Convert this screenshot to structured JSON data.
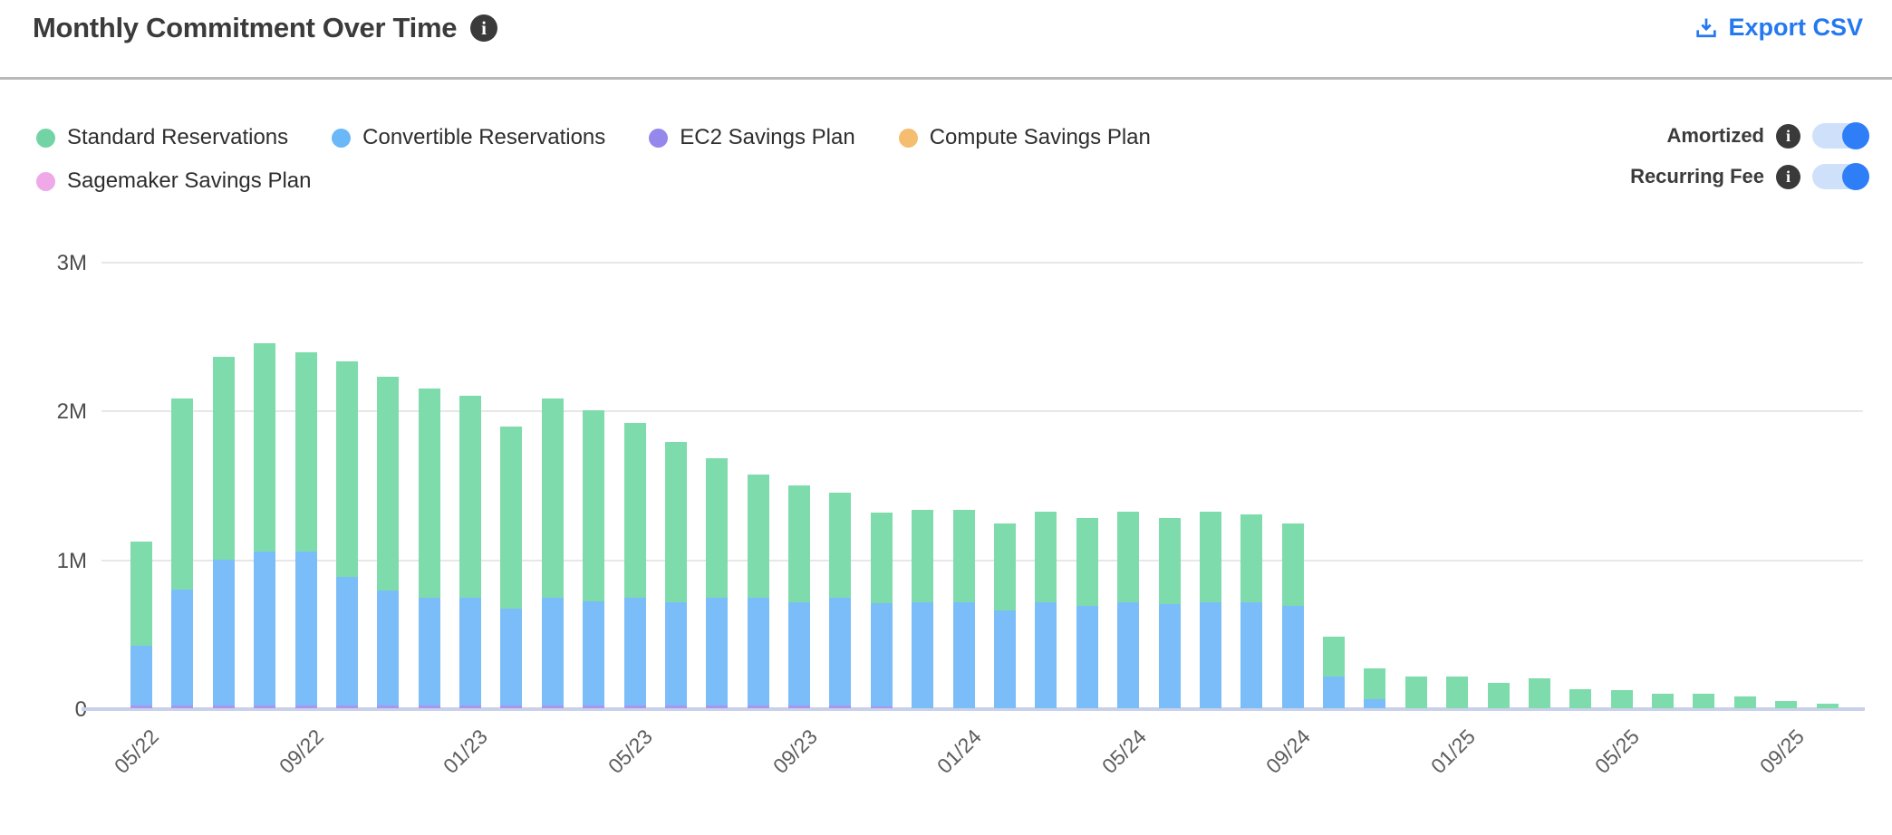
{
  "header": {
    "title": "Monthly Commitment Over Time",
    "title_info": "i",
    "export_label": "Export CSV"
  },
  "controls": {
    "toggles": [
      {
        "label": "Amortized",
        "info": "i",
        "state": "on"
      },
      {
        "label": "Recurring Fee",
        "info": "i",
        "state": "on"
      }
    ]
  },
  "legend": {
    "items": [
      {
        "label": "Standard Reservations",
        "color": "#72d4a4"
      },
      {
        "label": "Convertible Reservations",
        "color": "#6ab8f7"
      },
      {
        "label": "EC2 Savings Plan",
        "color": "#9488ec"
      },
      {
        "label": "Compute Savings Plan",
        "color": "#f4bd70"
      },
      {
        "label": "Sagemaker Savings Plan",
        "color": "#efa8e8"
      }
    ]
  },
  "chart_data": {
    "type": "bar",
    "stacked": true,
    "title": "Monthly Commitment Over Time",
    "xlabel": "",
    "ylabel": "",
    "unit_suffix": "M",
    "ylim": [
      0,
      3
    ],
    "grid": "horizontal",
    "legend_position": "top-left",
    "y_ticks": [
      {
        "label": "3M",
        "value": 3
      },
      {
        "label": "2M",
        "value": 2
      },
      {
        "label": "1M",
        "value": 1
      },
      {
        "label": "0",
        "value": 0
      }
    ],
    "x_tick_every": 4,
    "x_tick_labels": [
      "05/22",
      "09/22",
      "01/23",
      "05/23",
      "09/23",
      "01/24",
      "05/24",
      "09/24",
      "01/25",
      "05/25",
      "09/25"
    ],
    "categories": [
      "05/22",
      "06/22",
      "07/22",
      "08/22",
      "09/22",
      "10/22",
      "11/22",
      "12/22",
      "01/23",
      "02/23",
      "03/23",
      "04/23",
      "05/23",
      "06/23",
      "07/23",
      "08/23",
      "09/23",
      "10/23",
      "11/23",
      "12/23",
      "01/24",
      "02/24",
      "03/24",
      "04/24",
      "05/24",
      "06/24",
      "07/24",
      "08/24",
      "09/24",
      "10/24",
      "11/24",
      "12/24",
      "01/25",
      "02/25",
      "03/25",
      "04/25",
      "05/25",
      "06/25",
      "07/25",
      "08/25",
      "09/25",
      "10/25"
    ],
    "stack_order_bottom_to_top": [
      "EC2 Savings Plan",
      "Compute Savings Plan",
      "Sagemaker Savings Plan",
      "Convertible Reservations",
      "Standard Reservations"
    ],
    "series": [
      {
        "name": "Standard Reservations",
        "color": "#7edcac",
        "values": [
          0.7,
          1.28,
          1.36,
          1.4,
          1.34,
          1.45,
          1.44,
          1.41,
          1.36,
          1.22,
          1.34,
          1.28,
          1.18,
          1.08,
          0.94,
          0.83,
          0.79,
          0.71,
          0.61,
          0.62,
          0.62,
          0.58,
          0.61,
          0.59,
          0.61,
          0.58,
          0.61,
          0.59,
          0.55,
          0.27,
          0.21,
          0.21,
          0.21,
          0.17,
          0.2,
          0.13,
          0.12,
          0.1,
          0.1,
          0.08,
          0.05,
          0.03
        ]
      },
      {
        "name": "Convertible Reservations",
        "color": "#7bbdf9",
        "values": [
          0.4,
          0.78,
          0.98,
          1.03,
          1.03,
          0.86,
          0.77,
          0.72,
          0.72,
          0.65,
          0.72,
          0.7,
          0.72,
          0.69,
          0.72,
          0.72,
          0.69,
          0.72,
          0.69,
          0.71,
          0.71,
          0.66,
          0.71,
          0.69,
          0.71,
          0.7,
          0.71,
          0.71,
          0.69,
          0.21,
          0.06,
          0,
          0,
          0,
          0,
          0,
          0,
          0,
          0,
          0,
          0,
          0
        ]
      },
      {
        "name": "EC2 Savings Plan",
        "color": "#a896f0",
        "values": [
          0.02,
          0.02,
          0.02,
          0.02,
          0.02,
          0.02,
          0.02,
          0.02,
          0.02,
          0.02,
          0.02,
          0.02,
          0.02,
          0.02,
          0.02,
          0.02,
          0.02,
          0.02,
          0.015,
          0,
          0,
          0,
          0,
          0,
          0,
          0,
          0,
          0,
          0,
          0,
          0,
          0,
          0,
          0,
          0,
          0,
          0,
          0,
          0,
          0,
          0,
          0
        ]
      },
      {
        "name": "Compute Savings Plan",
        "color": "#f4bd70",
        "values": [
          0,
          0,
          0,
          0,
          0,
          0,
          0,
          0,
          0,
          0,
          0,
          0,
          0,
          0,
          0,
          0,
          0,
          0,
          0,
          0,
          0,
          0,
          0,
          0,
          0,
          0,
          0,
          0,
          0,
          0,
          0,
          0,
          0,
          0,
          0,
          0,
          0,
          0,
          0,
          0,
          0,
          0
        ]
      },
      {
        "name": "Sagemaker Savings Plan",
        "color": "#efa8e8",
        "values": [
          0,
          0,
          0,
          0,
          0,
          0,
          0,
          0,
          0,
          0,
          0,
          0,
          0,
          0,
          0,
          0,
          0,
          0,
          0,
          0,
          0,
          0,
          0,
          0,
          0,
          0,
          0,
          0,
          0,
          0,
          0,
          0,
          0,
          0,
          0,
          0,
          0,
          0,
          0,
          0,
          0,
          0
        ]
      }
    ]
  },
  "colors": {
    "accent_blue": "#2478f0",
    "toggle_on": "#2e7ef7",
    "toggle_track": "#cfe1fa",
    "axis_line": "#c9d1ea",
    "gridline": "#e7e7e7",
    "title_text": "#3b3b3b"
  }
}
